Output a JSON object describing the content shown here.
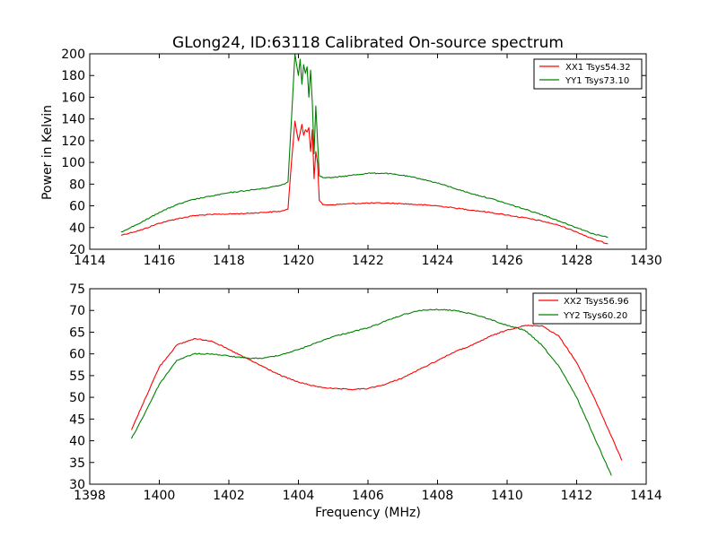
{
  "chart_data": [
    {
      "type": "line",
      "title": "GLong24, ID:63118 Calibrated On-source spectrum",
      "xlabel": "",
      "ylabel": "Power in Kelvin",
      "xlim": [
        1414,
        1430
      ],
      "ylim": [
        20,
        200
      ],
      "xticks": [
        1414,
        1416,
        1418,
        1420,
        1422,
        1424,
        1426,
        1428,
        1430
      ],
      "yticks": [
        20,
        40,
        60,
        80,
        100,
        120,
        140,
        160,
        180,
        200
      ],
      "grid": false,
      "legend_position": "top-right",
      "series": [
        {
          "name": "XX1 Tsys54.32",
          "color": "#ff0000",
          "x": [
            1414.9,
            1415.5,
            1416.0,
            1416.5,
            1417.0,
            1417.5,
            1418.0,
            1418.5,
            1419.0,
            1419.5,
            1419.7,
            1419.8,
            1419.9,
            1420.0,
            1420.1,
            1420.15,
            1420.2,
            1420.25,
            1420.3,
            1420.35,
            1420.4,
            1420.45,
            1420.5,
            1420.55,
            1420.6,
            1420.7,
            1421.0,
            1421.5,
            1422.0,
            1422.5,
            1423.0,
            1423.5,
            1424.0,
            1424.5,
            1425.0,
            1425.5,
            1426.0,
            1426.5,
            1427.0,
            1427.5,
            1428.0,
            1428.5,
            1428.9
          ],
          "y": [
            33,
            38,
            44,
            48,
            51,
            52,
            52.5,
            53,
            54,
            55,
            57,
            100,
            138,
            120,
            135,
            125,
            130,
            128,
            132,
            110,
            130,
            85,
            110,
            100,
            65,
            61,
            61,
            62,
            62.5,
            62.5,
            62,
            61,
            60,
            58,
            56,
            54,
            51.5,
            49,
            46,
            42,
            36,
            29,
            25
          ]
        },
        {
          "name": "YY1 Tsys73.10",
          "color": "#008000",
          "x": [
            1414.9,
            1415.5,
            1416.0,
            1416.5,
            1417.0,
            1417.5,
            1418.0,
            1418.5,
            1419.0,
            1419.5,
            1419.7,
            1419.8,
            1419.9,
            1420.0,
            1420.05,
            1420.1,
            1420.15,
            1420.2,
            1420.25,
            1420.3,
            1420.35,
            1420.4,
            1420.45,
            1420.5,
            1420.55,
            1420.6,
            1420.7,
            1421.0,
            1421.5,
            1422.0,
            1422.5,
            1423.0,
            1423.5,
            1424.0,
            1424.5,
            1425.0,
            1425.5,
            1426.0,
            1426.5,
            1427.0,
            1427.5,
            1428.0,
            1428.5,
            1428.9
          ],
          "y": [
            36,
            45,
            54,
            61,
            66,
            69,
            72,
            74,
            76,
            79,
            82,
            140,
            200,
            180,
            195,
            172,
            190,
            182,
            188,
            160,
            185,
            155,
            108,
            152,
            120,
            88,
            86,
            86,
            88,
            90,
            90,
            88,
            85,
            81,
            76,
            71,
            67,
            62,
            57,
            52,
            46,
            40,
            34,
            31
          ]
        }
      ]
    },
    {
      "type": "line",
      "title": "",
      "xlabel": "Frequency (MHz)",
      "ylabel": "",
      "xlim": [
        1398,
        1414
      ],
      "ylim": [
        30,
        75
      ],
      "xticks": [
        1398,
        1400,
        1402,
        1404,
        1406,
        1408,
        1410,
        1412,
        1414
      ],
      "yticks": [
        30,
        35,
        40,
        45,
        50,
        55,
        60,
        65,
        70,
        75
      ],
      "grid": false,
      "legend_position": "top-right",
      "series": [
        {
          "name": "XX2 Tsys56.96",
          "color": "#ff0000",
          "x": [
            1399.2,
            1399.5,
            1400.0,
            1400.5,
            1401.0,
            1401.5,
            1402.0,
            1402.5,
            1403.0,
            1403.5,
            1404.0,
            1404.5,
            1405.0,
            1405.5,
            1406.0,
            1406.5,
            1407.0,
            1407.5,
            1408.0,
            1408.5,
            1409.0,
            1409.5,
            1410.0,
            1410.5,
            1411.0,
            1411.5,
            1412.0,
            1412.5,
            1413.0,
            1413.3
          ],
          "y": [
            42.5,
            48,
            57,
            62,
            63.5,
            63,
            61,
            59,
            57,
            55,
            53.5,
            52.5,
            52,
            51.8,
            52,
            53,
            54.5,
            56.5,
            58.5,
            60.5,
            62,
            64,
            65.5,
            66.5,
            66.5,
            64,
            58,
            50,
            41,
            35.5
          ]
        },
        {
          "name": "YY2 Tsys60.20",
          "color": "#008000",
          "x": [
            1399.2,
            1399.5,
            1400.0,
            1400.5,
            1401.0,
            1401.5,
            1402.0,
            1402.5,
            1403.0,
            1403.5,
            1404.0,
            1404.5,
            1405.0,
            1405.5,
            1406.0,
            1406.5,
            1407.0,
            1407.5,
            1408.0,
            1408.5,
            1409.0,
            1409.5,
            1410.0,
            1410.5,
            1411.0,
            1411.5,
            1412.0,
            1412.5,
            1413.0
          ],
          "y": [
            40.5,
            45,
            53,
            58.5,
            60,
            60,
            59.5,
            59,
            59,
            59.8,
            61,
            62.5,
            64,
            65,
            66,
            67.5,
            69,
            70,
            70.2,
            70,
            69.2,
            68,
            66.5,
            65.5,
            62,
            57,
            50,
            41,
            32
          ]
        }
      ]
    }
  ]
}
